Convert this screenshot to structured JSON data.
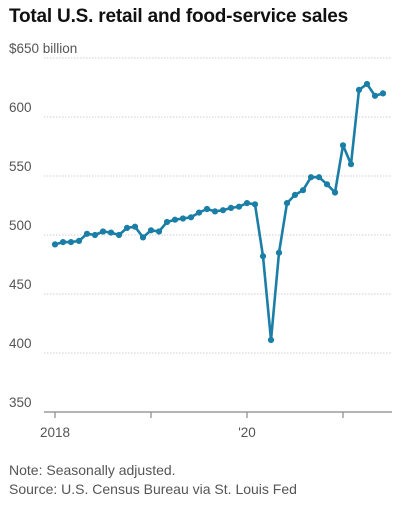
{
  "chart_data": {
    "type": "line",
    "title": "Total U.S. retail and food-service sales",
    "y_unit_label": "$650 billion",
    "y_ticks": [
      350,
      400,
      450,
      500,
      550,
      600,
      650
    ],
    "y_tick_labels": [
      "350",
      "400",
      "450",
      "500",
      "550",
      "600",
      "$650 billion"
    ],
    "ylim": [
      350,
      650
    ],
    "x_ticks": [
      "2018-01",
      "2019-01",
      "2020-01",
      "2021-01"
    ],
    "x_tick_labels": [
      "2018",
      "",
      "'20",
      ""
    ],
    "x_range": [
      "2018-01",
      "2021-06"
    ],
    "grid": "horizontal",
    "color": "#1a7ea6",
    "x": [
      "2018-01",
      "2018-02",
      "2018-03",
      "2018-04",
      "2018-05",
      "2018-06",
      "2018-07",
      "2018-08",
      "2018-09",
      "2018-10",
      "2018-11",
      "2018-12",
      "2019-01",
      "2019-02",
      "2019-03",
      "2019-04",
      "2019-05",
      "2019-06",
      "2019-07",
      "2019-08",
      "2019-09",
      "2019-10",
      "2019-11",
      "2019-12",
      "2020-01",
      "2020-02",
      "2020-03",
      "2020-04",
      "2020-05",
      "2020-06",
      "2020-07",
      "2020-08",
      "2020-09",
      "2020-10",
      "2020-11",
      "2020-12",
      "2021-01",
      "2021-02",
      "2021-03",
      "2021-04",
      "2021-05",
      "2021-06"
    ],
    "values": [
      492,
      494,
      494,
      495,
      501,
      500,
      503,
      502,
      500,
      506,
      507,
      498,
      504,
      503,
      511,
      513,
      514,
      515,
      519,
      522,
      520,
      521,
      523,
      524,
      527,
      526,
      482,
      411,
      485,
      527,
      534,
      538,
      549,
      549,
      543,
      536,
      576,
      560,
      623,
      628,
      618,
      620
    ]
  },
  "notes": {
    "note": "Note: Seasonally adjusted.",
    "source": "Source: U.S. Census Bureau via St. Louis Fed"
  }
}
